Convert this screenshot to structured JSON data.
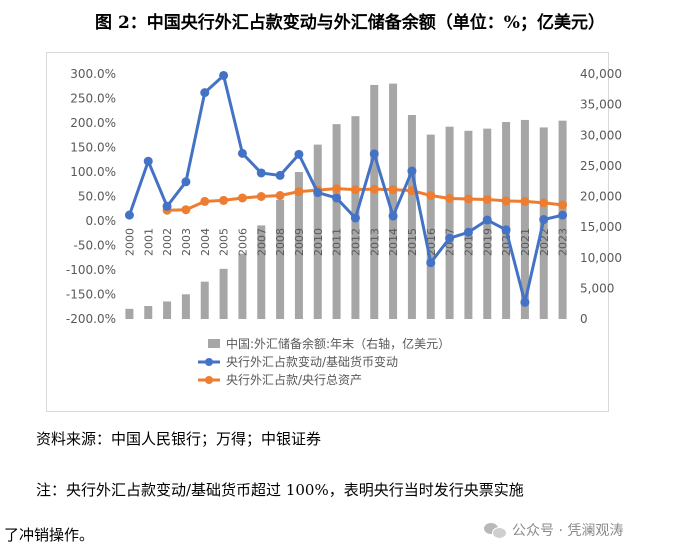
{
  "title": "图 2：中国央行外汇占款变动与外汇储备余额（单位：%；亿美元）",
  "source": "资料来源：中国人民银行；万得；中银证券",
  "note_line1": "注：央行外汇占款变动/基础货币超过 100%，表明央行当时发行央票实施",
  "note_line2": "了冲销操作。",
  "watermark": "公众号 · 凭澜观涛",
  "colors": {
    "bars": "#a6a6a6",
    "blue": "#4472c4",
    "orange": "#ed7d31",
    "axis_text": "#595959"
  },
  "chart_data": {
    "type": "bar+line",
    "categories": [
      "2000",
      "2001",
      "2002",
      "2003",
      "2004",
      "2005",
      "2006",
      "2007",
      "2008",
      "2009",
      "2010",
      "2011",
      "2012",
      "2013",
      "2014",
      "2015",
      "2016",
      "2017",
      "2018",
      "2019",
      "2020",
      "2021",
      "2022",
      "2023"
    ],
    "y_left": {
      "min": -200,
      "max": 300,
      "step": 50,
      "ticks": [
        "300.0%",
        "250.0%",
        "200.0%",
        "150.0%",
        "100.0%",
        "50.0%",
        "0.0%",
        "-50.0%",
        "-100.0%",
        "-150.0%",
        "-200.0%"
      ]
    },
    "y_right": {
      "min": 0,
      "max": 40000,
      "step": 5000,
      "ticks": [
        "40,000",
        "35,000",
        "30,000",
        "25,000",
        "20,000",
        "15,000",
        "10,000",
        "5,000",
        "0"
      ]
    },
    "series": [
      {
        "name": "中国:外汇储备余额:年末（右轴，亿美元）",
        "kind": "bar",
        "axis": "right",
        "values": [
          1656,
          2122,
          2864,
          4033,
          6099,
          8189,
          10663,
          15282,
          19460,
          23992,
          28473,
          31811,
          33116,
          38213,
          38430,
          33304,
          30105,
          31399,
          30727,
          31079,
          32165,
          32502,
          31277,
          32380
        ]
      },
      {
        "name": "央行外汇占款变动/基础货币变动",
        "kind": "line",
        "axis": "left",
        "values": [
          12,
          122,
          30,
          80,
          262,
          297,
          138,
          98,
          93,
          136,
          58,
          47,
          6,
          137,
          10,
          102,
          -85,
          -35,
          -23,
          2,
          -18,
          -166,
          3,
          12
        ]
      },
      {
        "name": "央行外汇占款/央行总资产",
        "kind": "line",
        "axis": "left",
        "values": [
          null,
          null,
          22,
          23,
          40,
          42,
          47,
          50,
          52,
          60,
          63,
          66,
          64,
          65,
          64,
          62,
          52,
          46,
          45,
          44,
          41,
          40,
          37,
          33
        ]
      }
    ],
    "legend_position": "bottom"
  }
}
